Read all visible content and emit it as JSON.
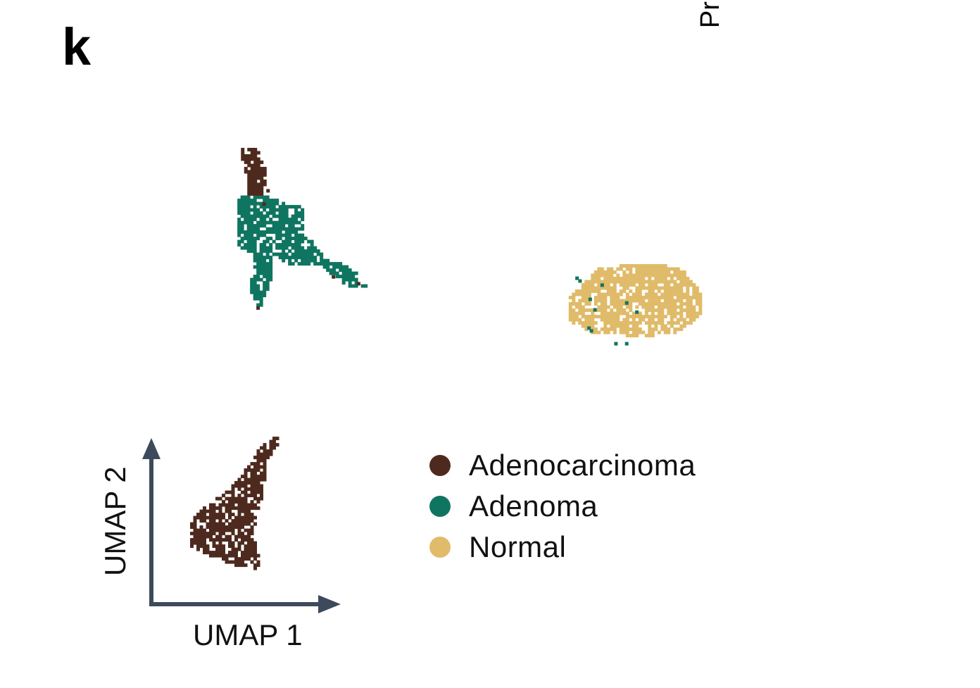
{
  "panel_label": "k",
  "clipped_text": "Pr",
  "chart_data": {
    "type": "scatter",
    "xlabel": "UMAP 1",
    "ylabel": "UMAP 2",
    "xlim": [
      0,
      100
    ],
    "ylim": [
      0,
      100
    ],
    "grid": false,
    "axis_style": "arrows",
    "axis_color": "#3d4a5c",
    "legend_placement": "bottom-center",
    "legend": [
      {
        "name": "Adenocarcinoma",
        "color": "#4e2a1e"
      },
      {
        "name": "Adenoma",
        "color": "#0f7560"
      },
      {
        "name": "Normal",
        "color": "#e0bb69"
      }
    ],
    "series": [
      {
        "name": "Normal",
        "color": "#e0bb69",
        "regions": [
          [
            [
              71.8,
              63.1
            ],
            [
              76.5,
              69.2
            ],
            [
              85.9,
              70.3
            ],
            [
              91.2,
              68.5
            ],
            [
              93.9,
              63.1
            ],
            [
              93.5,
              58.5
            ],
            [
              89.4,
              54.8
            ],
            [
              82.4,
              53.8
            ],
            [
              75.3,
              55.1
            ],
            [
              71.8,
              57.3
            ]
          ]
        ],
        "points": []
      },
      {
        "name": "Adenoma",
        "color": "#0f7560",
        "regions": [
          [
            [
              16.5,
              84.6
            ],
            [
              21.2,
              84.6
            ],
            [
              27.1,
              82.3
            ],
            [
              27.6,
              76.9
            ],
            [
              30.6,
              71.5
            ],
            [
              35.3,
              69.2
            ],
            [
              37.9,
              64.9
            ],
            [
              34.7,
              64.6
            ],
            [
              30.0,
              70.0
            ],
            [
              24.7,
              70.0
            ],
            [
              21.8,
              72.3
            ],
            [
              21.8,
              66.9
            ],
            [
              21.2,
              63.1
            ],
            [
              19.8,
              60.0
            ],
            [
              18.2,
              64.6
            ],
            [
              18.8,
              70.8
            ],
            [
              16.2,
              73.8
            ],
            [
              15.9,
              80.0
            ]
          ]
        ],
        "points": [
          [
            72.9,
            66.9
          ],
          [
            73.4,
            66.3
          ],
          [
            75.1,
            62.3
          ],
          [
            75.9,
            60.0
          ],
          [
            81.2,
            61.5
          ],
          [
            82.9,
            59.5
          ],
          [
            75.3,
            55.4
          ],
          [
            74.9,
            56.0
          ],
          [
            79.4,
            52.6
          ],
          [
            81.2,
            52.6
          ],
          [
            77.1,
            65.4
          ]
        ]
      },
      {
        "name": "Adenocarcinoma",
        "color": "#4e2a1e",
        "regions": [
          [
            [
              16.5,
              95.7
            ],
            [
              19.4,
              95.4
            ],
            [
              20.9,
              90.8
            ],
            [
              21.4,
              85.4
            ],
            [
              17.9,
              84.9
            ],
            [
              17.1,
              90.8
            ]
          ],
          [
            [
              22.9,
              32.6
            ],
            [
              23.3,
              31.4
            ],
            [
              21.0,
              26.8
            ],
            [
              20.6,
              20.6
            ],
            [
              18.8,
              11.4
            ],
            [
              20.2,
              3.4
            ],
            [
              16.5,
              3.8
            ],
            [
              11.8,
              6.2
            ],
            [
              8.2,
              8.5
            ],
            [
              8.0,
              13.1
            ],
            [
              11.2,
              17.7
            ],
            [
              15.3,
              21.5
            ],
            [
              18.2,
              26.2
            ],
            [
              20.0,
              30.0
            ]
          ]
        ],
        "points": [
          [
            20.6,
            83.1
          ],
          [
            32.2,
            67.2
          ],
          [
            36.4,
            65.7
          ],
          [
            19.6,
            60.4
          ]
        ]
      }
    ]
  }
}
